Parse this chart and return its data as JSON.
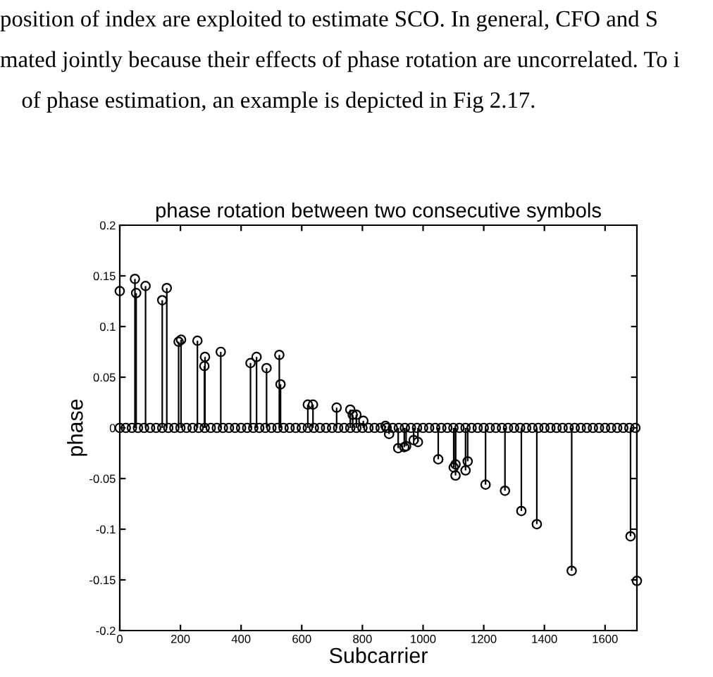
{
  "chart_data": {
    "type": "lollipop",
    "title": "phase rotation between two consecutive symbols",
    "xlabel": "Subcarrier",
    "ylabel": "phase",
    "annotations": [
      "position of index are exploited to estimate SCO. In general, CFO and S",
      "mated jointly because their effects of phase rotation are uncorrelated. To i",
      "of phase estimation, an example is depicted in Fig 2.17."
    ],
    "xlim": [
      0,
      1705
    ],
    "xticks": [
      0,
      200,
      400,
      600,
      800,
      1000,
      1200,
      1400,
      1600
    ],
    "ylim": [
      -0.2,
      0.2
    ],
    "yticks": [
      -0.2,
      -0.15,
      -0.1,
      -0.05,
      0,
      0.05,
      0.1,
      0.15,
      0.2
    ],
    "marker": "circle",
    "grid": false,
    "series": [
      {
        "color": "#000000",
        "x": [
          0,
          50,
          54,
          85,
          140,
          155,
          194,
          202,
          256,
          279,
          281,
          333,
          431,
          451,
          484,
          526,
          530,
          620,
          637,
          715,
          760,
          768,
          780,
          803,
          876,
          888,
          918,
          938,
          944,
          969,
          983,
          1050,
          1101,
          1107,
          1107,
          1140,
          1147,
          1206,
          1270,
          1324,
          1375,
          1490,
          1684,
          1705
        ],
        "values": [
          0.135,
          0.147,
          0.133,
          0.14,
          0.126,
          0.138,
          0.085,
          0.087,
          0.086,
          0.061,
          0.07,
          0.075,
          0.064,
          0.07,
          0.059,
          0.072,
          0.043,
          0.023,
          0.023,
          0.02,
          0.018,
          0.013,
          0.013,
          0.007,
          0.002,
          -0.006,
          -0.02,
          -0.019,
          -0.018,
          -0.012,
          -0.014,
          -0.031,
          -0.039,
          -0.036,
          -0.047,
          -0.042,
          -0.033,
          -0.056,
          -0.062,
          -0.082,
          -0.095,
          -0.141,
          -0.107,
          -0.151
        ]
      },
      {
        "color": "#000000",
        "x": [
          0,
          20,
          40,
          60,
          80,
          100,
          120,
          140,
          160,
          180,
          200,
          220,
          240,
          260,
          280,
          300,
          320,
          340,
          360,
          380,
          400,
          420,
          440,
          460,
          480,
          500,
          520,
          540,
          560,
          580,
          600,
          620,
          640,
          660,
          680,
          700,
          720,
          740,
          760,
          780,
          800,
          820,
          840,
          860,
          880,
          900,
          920,
          940,
          960,
          980,
          1000,
          1020,
          1040,
          1060,
          1080,
          1100,
          1120,
          1140,
          1160,
          1180,
          1200,
          1220,
          1240,
          1260,
          1280,
          1300,
          1320,
          1340,
          1360,
          1380,
          1400,
          1420,
          1440,
          1460,
          1480,
          1500,
          1520,
          1540,
          1560,
          1580,
          1600,
          1620,
          1640,
          1660,
          1680,
          1700
        ],
        "values": [
          0,
          0,
          0,
          0,
          0,
          0,
          0,
          0,
          0,
          0,
          0,
          0,
          0,
          0,
          0,
          0,
          0,
          0,
          0,
          0,
          0,
          0,
          0,
          0,
          0,
          0,
          0,
          0,
          0,
          0,
          0,
          0,
          0,
          0,
          0,
          0,
          0,
          0,
          0,
          0,
          0,
          0,
          0,
          0,
          0,
          0,
          0,
          0,
          0,
          0,
          0,
          0,
          0,
          0,
          0,
          0,
          0,
          0,
          0,
          0,
          0,
          0,
          0,
          0,
          0,
          0,
          0,
          0,
          0,
          0,
          0,
          0,
          0,
          0,
          0,
          0,
          0,
          0,
          0,
          0,
          0,
          0,
          0,
          0,
          0,
          0
        ]
      }
    ]
  }
}
